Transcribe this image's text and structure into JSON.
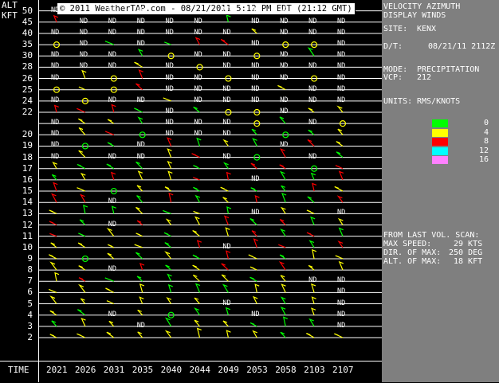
{
  "header": {
    "alt_label": "ALT KFT",
    "banner": "© 2011 WeatherTAP.com - 08/21/2011  5:12 PM EDT (21:12 GMT)"
  },
  "side_panel": {
    "title_line1": "VELOCITY AZIMUTH",
    "title_line2": "DISPLAY WINDS",
    "site_label": "SITE:",
    "site_value": "KENX",
    "dt_label": "D/T:",
    "dt_value": "08/21/11 2112Z",
    "mode_label": "MODE:",
    "mode_value": "PRECIPITATION",
    "vcp_label": "VCP:",
    "vcp_value": "212",
    "units_label": "UNITS:",
    "units_value": "RMS/KNOTS",
    "legend": [
      {
        "color": "#00ff00",
        "value": "0"
      },
      {
        "color": "#ffff00",
        "value": "4"
      },
      {
        "color": "#ff0000",
        "value": "8"
      },
      {
        "color": "#00ffff",
        "value": "12"
      },
      {
        "color": "#ff80ff",
        "value": "16"
      }
    ],
    "scan_title": "FROM LAST VOL. SCAN:",
    "max_speed_label": "MAX SPEED:",
    "max_speed_value": "29 KTS",
    "dir_label": "DIR. OF MAX:",
    "dir_value": "250 DEG",
    "alt_max_label": "ALT. OF MAX:",
    "alt_max_value": "18 KFT"
  },
  "chart_data": {
    "type": "scatter",
    "title": "VELOCITY AZIMUTH DISPLAY WINDS",
    "xlabel": "TIME",
    "ylabel": "ALT KFT",
    "x": [
      "2021",
      "2026",
      "2031",
      "2035",
      "2040",
      "2044",
      "2049",
      "2053",
      "2058",
      "2103",
      "2107"
    ],
    "altitudes": [
      2,
      3,
      4,
      5,
      6,
      7,
      8,
      9,
      10,
      11,
      12,
      13,
      14,
      15,
      16,
      17,
      18,
      19,
      20,
      21,
      22,
      24,
      25,
      26,
      28,
      30,
      35,
      40,
      45,
      50
    ],
    "labeled_ticks": [
      2,
      3,
      4,
      5,
      6,
      7,
      8,
      9,
      10,
      11,
      12,
      13,
      14,
      15,
      16,
      17,
      18,
      19,
      20,
      22,
      24,
      25,
      26,
      28,
      30,
      35,
      40,
      45,
      50
    ],
    "nd_marker": "ND",
    "rms_legend_values": [
      0,
      4,
      8,
      12,
      16
    ],
    "max_speed_kts": 29,
    "dir_of_max_deg": 250,
    "alt_of_max_kft": 18
  }
}
